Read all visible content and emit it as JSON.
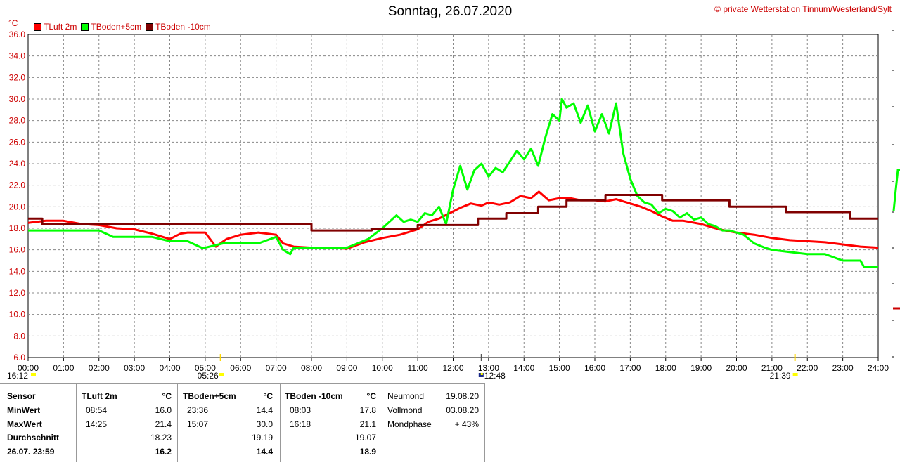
{
  "header": {
    "title": "Sonntag, 26.07.2020",
    "copyright": "© private Wetterstation Tinnum/Westerland/Sylt",
    "unit": "°C"
  },
  "legend": [
    {
      "label": "TLuft 2m",
      "color": "#ff0000"
    },
    {
      "label": "TBoden+5cm",
      "color": "#00ff00"
    },
    {
      "label": "TBoden -10cm",
      "color": "#800000"
    }
  ],
  "sun_markers": {
    "sunset_prev": "16:12",
    "sunrise": "05:26",
    "solar_noon": "12:48",
    "sunset": "21:39"
  },
  "chart_data": {
    "type": "line",
    "ylim": [
      6,
      36
    ],
    "xlim": [
      0,
      24
    ],
    "yticks": [
      "6.0",
      "8.0",
      "10.0",
      "12.0",
      "14.0",
      "16.0",
      "18.0",
      "20.0",
      "22.0",
      "24.0",
      "26.0",
      "28.0",
      "30.0",
      "32.0",
      "34.0",
      "36.0"
    ],
    "xticks": [
      "00:00",
      "01:00",
      "02:00",
      "03:00",
      "04:00",
      "05:00",
      "06:00",
      "07:00",
      "08:00",
      "09:00",
      "10:00",
      "11:00",
      "12:00",
      "13:00",
      "14:00",
      "15:00",
      "16:00",
      "17:00",
      "18:00",
      "19:00",
      "20:00",
      "21:00",
      "22:00",
      "23:00",
      "24:00"
    ],
    "grid": true,
    "series": [
      {
        "name": "TLuft 2m",
        "color": "#ff0000",
        "x": [
          0,
          0.5,
          1,
          1.5,
          2,
          2.5,
          3,
          3.5,
          4,
          4.3,
          4.5,
          5,
          5.3,
          5.6,
          6,
          6.5,
          7,
          7.2,
          7.5,
          8,
          8.5,
          9,
          9.5,
          10,
          10.5,
          11,
          11.3,
          11.6,
          11.9,
          12.2,
          12.5,
          12.8,
          13,
          13.3,
          13.6,
          13.9,
          14.2,
          14.42,
          14.7,
          15,
          15.3,
          15.6,
          16,
          16.3,
          16.6,
          17,
          17.3,
          17.6,
          17.9,
          18.2,
          18.5,
          19,
          19.5,
          20,
          20.5,
          21,
          21.5,
          22,
          22.5,
          23,
          23.5,
          24
        ],
        "y": [
          18.5,
          18.7,
          18.7,
          18.4,
          18.3,
          18.0,
          17.9,
          17.5,
          17.0,
          17.5,
          17.6,
          17.6,
          16.3,
          17.0,
          17.4,
          17.6,
          17.4,
          16.6,
          16.3,
          16.2,
          16.2,
          16.1,
          16.7,
          17.1,
          17.4,
          17.9,
          18.6,
          18.9,
          19.4,
          19.9,
          20.3,
          20.1,
          20.4,
          20.2,
          20.4,
          21.0,
          20.8,
          21.4,
          20.6,
          20.8,
          20.8,
          20.6,
          20.6,
          20.5,
          20.7,
          20.3,
          20.0,
          19.6,
          19.1,
          18.7,
          18.7,
          18.4,
          17.9,
          17.6,
          17.4,
          17.1,
          16.9,
          16.8,
          16.7,
          16.5,
          16.3,
          16.2
        ]
      },
      {
        "name": "TBoden+5cm",
        "color": "#00ff00",
        "x": [
          0,
          1,
          2,
          2.4,
          2.5,
          3,
          3.5,
          4,
          4.3,
          4.5,
          4.9,
          5,
          5.5,
          6,
          6.5,
          7,
          7.2,
          7.4,
          7.5,
          8,
          8.5,
          9,
          9.3,
          9.6,
          10,
          10.2,
          10.4,
          10.6,
          10.8,
          11,
          11.2,
          11.4,
          11.6,
          11.8,
          12,
          12.2,
          12.4,
          12.6,
          12.8,
          13,
          13.2,
          13.4,
          13.6,
          13.8,
          14,
          14.2,
          14.4,
          14.6,
          14.8,
          15,
          15.07,
          15.2,
          15.4,
          15.6,
          15.8,
          16,
          16.2,
          16.4,
          16.6,
          16.8,
          17,
          17.2,
          17.4,
          17.6,
          17.8,
          18,
          18.2,
          18.4,
          18.6,
          18.8,
          19,
          19.2,
          19.4,
          19.6,
          19.8,
          20,
          20.2,
          20.5,
          20.8,
          21,
          21.5,
          22,
          22.5,
          23,
          23.5,
          23.6,
          24
        ],
        "y": [
          17.8,
          17.8,
          17.8,
          17.2,
          17.2,
          17.2,
          17.2,
          16.8,
          16.8,
          16.8,
          16.2,
          16.2,
          16.6,
          16.6,
          16.6,
          17.2,
          16.0,
          15.6,
          16.2,
          16.2,
          16.2,
          16.2,
          16.6,
          17.0,
          18.0,
          18.6,
          19.2,
          18.6,
          18.8,
          18.6,
          19.4,
          19.2,
          20.0,
          18.4,
          21.6,
          23.8,
          21.6,
          23.4,
          24.0,
          22.8,
          23.6,
          23.2,
          24.2,
          25.2,
          24.4,
          25.4,
          23.8,
          26.4,
          28.6,
          28.0,
          30.0,
          29.2,
          29.6,
          27.8,
          29.4,
          27.0,
          28.6,
          26.8,
          29.6,
          25.0,
          22.6,
          21.0,
          20.4,
          20.2,
          19.4,
          19.8,
          19.6,
          19.0,
          19.4,
          18.8,
          19.0,
          18.4,
          18.2,
          17.8,
          17.8,
          17.6,
          17.4,
          16.6,
          16.2,
          16.0,
          15.8,
          15.6,
          15.6,
          15.0,
          15.0,
          14.4,
          14.4
        ]
      },
      {
        "name": "TBoden -10cm",
        "color": "#800000",
        "x": [
          0,
          0.4,
          0.4,
          8,
          8,
          9.7,
          9.7,
          11,
          11,
          12.7,
          12.7,
          13.5,
          13.5,
          14.4,
          14.4,
          15.2,
          15.2,
          16.3,
          16.3,
          17.9,
          17.9,
          19.8,
          19.8,
          21.4,
          21.4,
          23.2,
          23.2,
          24
        ],
        "y": [
          18.9,
          18.9,
          18.4,
          18.4,
          17.8,
          17.8,
          17.9,
          17.9,
          18.3,
          18.3,
          18.9,
          18.9,
          19.4,
          19.4,
          20.0,
          20.0,
          20.6,
          20.6,
          21.1,
          21.1,
          20.6,
          20.6,
          20.0,
          20.0,
          19.5,
          19.5,
          18.9,
          18.9
        ]
      }
    ]
  },
  "stats": {
    "sensor_col": {
      "header": "Sensor",
      "rows": [
        "MinWert",
        "MaxWert",
        "Durchschnitt",
        "26.07. 23:59"
      ]
    },
    "tluft": {
      "header": "TLuft 2m",
      "unit": "°C",
      "min_time": "08:54",
      "min_val": "16.0",
      "max_time": "14:25",
      "max_val": "21.4",
      "avg": "18.23",
      "current": "16.2"
    },
    "tboden5": {
      "header": "TBoden+5cm",
      "unit": "°C",
      "min_time": "23:36",
      "min_val": "14.4",
      "max_time": "15:07",
      "max_val": "30.0",
      "avg": "19.19",
      "current": "14.4"
    },
    "tboden10": {
      "header": "TBoden -10cm",
      "unit": "°C",
      "min_time": "08:03",
      "min_val": "17.8",
      "max_time": "16:18",
      "max_val": "21.1",
      "avg": "19.07",
      "current": "18.9"
    },
    "moon": {
      "neumond_label": "Neumond",
      "neumond": "19.08.20",
      "vollmond_label": "Vollmond",
      "vollmond": "03.08.20",
      "phase_label": "Mondphase",
      "phase": "+ 43%"
    }
  }
}
